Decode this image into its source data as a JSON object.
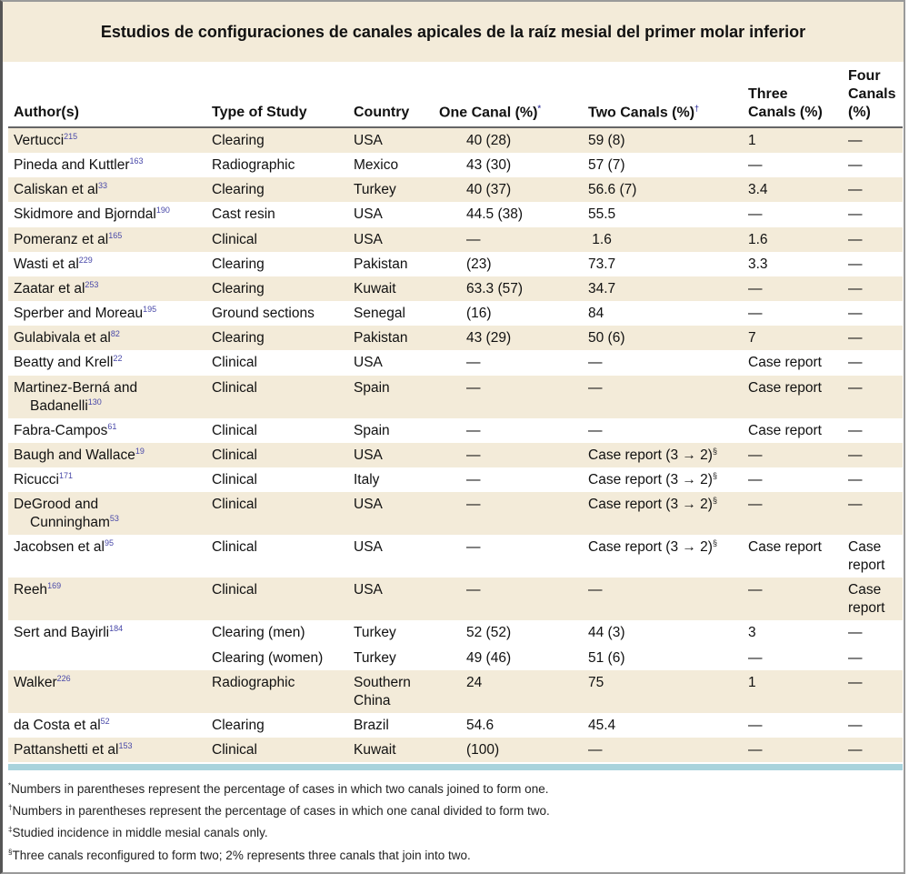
{
  "title": "Estudios de configuraciones de canales apicales de la raíz mesial del primer molar inferior",
  "colors": {
    "band": "#f3ebd9",
    "rule": "#a9d3dc",
    "superscript": "#4848a8"
  },
  "headers": [
    {
      "text": "Author(s)",
      "mark": ""
    },
    {
      "text": "Type of Study",
      "mark": ""
    },
    {
      "text": "Country",
      "mark": ""
    },
    {
      "text": "One Canal (%)",
      "mark": "*"
    },
    {
      "text": "Two Canals (%)",
      "mark": "†"
    },
    {
      "line1": "Three",
      "line2": "Canals (%)"
    },
    {
      "line1": "Four",
      "line2": "Canals (%)"
    }
  ],
  "rows": [
    {
      "author": "Vertucci",
      "ref": "215",
      "type": "Clearing",
      "country": "USA",
      "one": "40 (28)",
      "two": "59 (8)",
      "three": "1",
      "four": "—"
    },
    {
      "author": "Pineda and Kuttler",
      "ref": "163",
      "type": "Radiographic",
      "country": "Mexico",
      "one": "43 (30)",
      "two": "57 (7)",
      "three": "—",
      "four": "—"
    },
    {
      "author": "Caliskan et al",
      "ref": "33",
      "type": "Clearing",
      "country": "Turkey",
      "one": "40 (37)",
      "two": "56.6 (7)",
      "three": "3.4",
      "four": "—"
    },
    {
      "author": "Skidmore and Bjorndal",
      "ref": "190",
      "type": "Cast resin",
      "country": "USA",
      "one": "44.5 (38)",
      "two": "55.5",
      "three": "—",
      "four": "—"
    },
    {
      "author": "Pomeranz et al",
      "ref": "165",
      "type": "Clinical",
      "country": "USA",
      "one": "—",
      "two": " 1.6",
      "three": "1.6",
      "four": "—"
    },
    {
      "author": "Wasti et al",
      "ref": "229",
      "type": "Clearing",
      "country": "Pakistan",
      "one": "(23)",
      "two": "73.7",
      "three": "3.3",
      "four": "—"
    },
    {
      "author": "Zaatar et al",
      "ref": "253",
      "type": "Clearing",
      "country": "Kuwait",
      "one": "63.3 (57)",
      "two": "34.7",
      "three": "—",
      "four": "—"
    },
    {
      "author": "Sperber and Moreau",
      "ref": "195",
      "type": "Ground sections",
      "country": "Senegal",
      "one": "(16)",
      "two": "84",
      "three": "—",
      "four": "—"
    },
    {
      "author": "Gulabivala et al",
      "ref": "82",
      "type": "Clearing",
      "country": "Pakistan",
      "one": "43 (29)",
      "two": "50 (6)",
      "three": "7",
      "four": "—"
    },
    {
      "author": "Beatty and Krell",
      "ref": "22",
      "type": "Clinical",
      "country": "USA",
      "one": "—",
      "two": "—",
      "three": "Case report",
      "four": "—"
    },
    {
      "author": "Martinez-Berná and",
      "author2": "Badanelli",
      "ref": "130",
      "type": "Clinical",
      "country": "Spain",
      "one": "—",
      "two": "—",
      "three": "Case report",
      "four": "—"
    },
    {
      "author": "Fabra-Campos",
      "ref": "61",
      "type": "Clinical",
      "country": "Spain",
      "one": "—",
      "two": "—",
      "three": "Case report",
      "four": "—"
    },
    {
      "author": "Baugh and Wallace",
      "ref": "19",
      "type": "Clinical",
      "country": "USA",
      "one": "—",
      "two": "Case report (3 → 2)",
      "twomark": "§",
      "three": "—",
      "four": "—"
    },
    {
      "author": "Ricucci",
      "ref": "171",
      "type": "Clinical",
      "country": "Italy",
      "one": "—",
      "two": "Case report (3 → 2)",
      "twomark": "§",
      "three": "—",
      "four": "—"
    },
    {
      "author": "DeGrood and",
      "author2": "Cunningham",
      "ref": "53",
      "type": "Clinical",
      "country": "USA",
      "one": "—",
      "two": "Case report (3 → 2)",
      "twomark": "§",
      "three": "—",
      "four": "—"
    },
    {
      "author": "Jacobsen et al",
      "ref": "95",
      "type": "Clinical",
      "country": "USA",
      "one": "—",
      "two": "Case report (3 → 2)",
      "twomark": "§",
      "three": "Case report",
      "four": "Case report"
    },
    {
      "author": "Reeh",
      "ref": "169",
      "type": "Clinical",
      "country": "USA",
      "one": "—",
      "two": "—",
      "three": "—",
      "four": "Case report"
    },
    {
      "author": "Sert and Bayirli",
      "ref": "184",
      "type": "Clearing (men)",
      "country": "Turkey",
      "one": "52 (52)",
      "two": "44 (3)",
      "three": "3",
      "four": "—"
    },
    {
      "author": "",
      "ref": "",
      "type": "Clearing (women)",
      "country": "Turkey",
      "one": "49 (46)",
      "two": "51 (6)",
      "three": "—",
      "four": "—"
    },
    {
      "author": "Walker",
      "ref": "226",
      "type": "Radiographic",
      "country": "Southern",
      "country2": "China",
      "one": "24",
      "two": "75",
      "three": "1",
      "four": "—"
    },
    {
      "author": "da Costa et al",
      "ref": "52",
      "type": "Clearing",
      "country": "Brazil",
      "one": "54.6",
      "two": "45.4",
      "three": "—",
      "four": "—"
    },
    {
      "author": "Pattanshetti et al",
      "ref": "153",
      "type": "Clinical",
      "country": "Kuwait",
      "one": "(100)",
      "two": "—",
      "three": "—",
      "four": "—"
    }
  ],
  "footnotes": [
    {
      "mark": "*",
      "text": "Numbers in parentheses represent the percentage of cases in which two canals joined to form one."
    },
    {
      "mark": "†",
      "text": "Numbers in parentheses represent the percentage of cases in which one canal divided to form two."
    },
    {
      "mark": "‡",
      "text": "Studied incidence in middle mesial canals only."
    },
    {
      "mark": "§",
      "text": "Three canals reconfigured to form two; 2% represents three canals that join into two."
    }
  ]
}
